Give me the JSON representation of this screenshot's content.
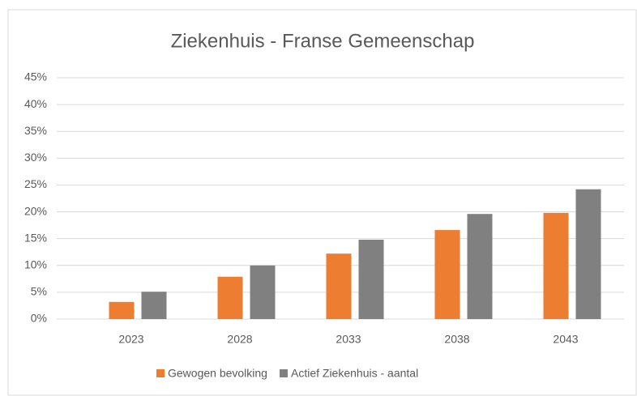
{
  "chart_data": {
    "type": "bar",
    "title": "Ziekenhuis - Franse Gemeenschap",
    "categories": [
      "2023",
      "2028",
      "2033",
      "2038",
      "2043"
    ],
    "series": [
      {
        "name": "Gewogen bevolking",
        "color": "#ed7d31",
        "values": [
          3.2,
          7.9,
          12.2,
          16.6,
          19.8
        ]
      },
      {
        "name": "Actief Ziekenhuis - aantal",
        "color": "#808080",
        "values": [
          5.1,
          10.0,
          14.8,
          19.6,
          24.2
        ]
      }
    ],
    "ylim": [
      0,
      45
    ],
    "yticks": [
      {
        "value": 0,
        "label": "0%"
      },
      {
        "value": 5,
        "label": "5%"
      },
      {
        "value": 10,
        "label": "10%"
      },
      {
        "value": 15,
        "label": "15%"
      },
      {
        "value": 20,
        "label": "20%"
      },
      {
        "value": 25,
        "label": "25%"
      },
      {
        "value": 30,
        "label": "30%"
      },
      {
        "value": 35,
        "label": "35%"
      },
      {
        "value": 40,
        "label": "40%"
      },
      {
        "value": 45,
        "label": "45%"
      }
    ],
    "grid": true,
    "legend": "bottom"
  }
}
